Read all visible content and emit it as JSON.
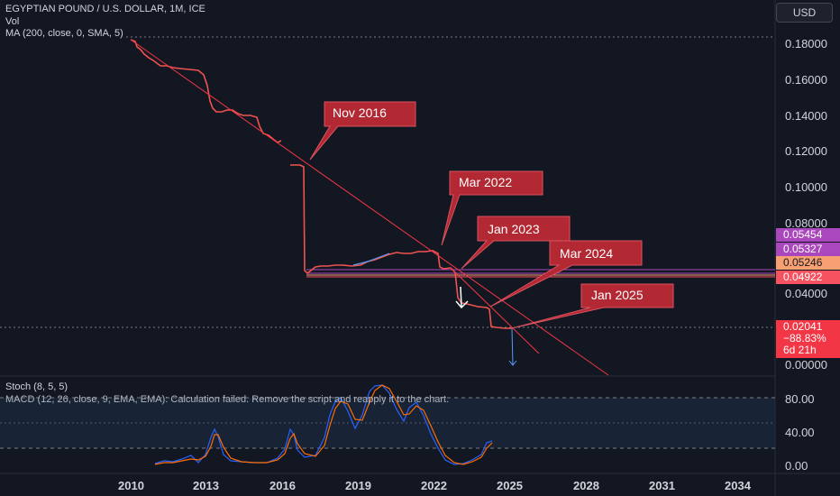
{
  "header": {
    "title": "EGYPTIAN POUND / U.S. DOLLAR, 1M, ICE",
    "vol_label": "Vol",
    "ma_label": "MA (200, close, 0, SMA, 5)",
    "currency_button": "USD"
  },
  "price_axis": {
    "ticks": [
      "0.18000",
      "0.16000",
      "0.14000",
      "0.12000",
      "0.10000",
      "0.08000",
      "0.04000",
      "0.00000"
    ]
  },
  "price_tags": [
    {
      "label": "0.05454",
      "color": "#ab47bc"
    },
    {
      "label": "0.05327",
      "color": "#ab47bc"
    },
    {
      "label": "0.05246",
      "color": "#f7a072"
    },
    {
      "label": "0.04922",
      "color": "#f7525f"
    }
  ],
  "current_price": {
    "price": "0.02041",
    "change": "−88.83%",
    "countdown": "6d 21h",
    "color": "#f23645"
  },
  "callouts": [
    {
      "label": "Nov 2016"
    },
    {
      "label": "Mar 2022"
    },
    {
      "label": "Jan 2023"
    },
    {
      "label": "Mar 2024"
    },
    {
      "label": "Jan 2025"
    }
  ],
  "indicators": {
    "stoch_label": "Stoch (8, 5, 5)",
    "macd_label": "MACD (12, 26, close, 9, EMA, EMA): Calculation failed. Remove the script and reapply it to the chart.",
    "ticks": [
      "80.00",
      "40.00",
      "0.00"
    ]
  },
  "time_axis": {
    "ticks": [
      "2010",
      "2013",
      "2016",
      "2019",
      "2022",
      "2025",
      "2028",
      "2031",
      "2034"
    ]
  },
  "colors": {
    "background": "#131722",
    "candle_down": "#ef5350",
    "candle_up": "#26a69a",
    "trendline": "#f23645",
    "callout_fill": "#b22833",
    "stoch_k": "#2962ff",
    "stoch_d": "#ff6d00"
  }
}
